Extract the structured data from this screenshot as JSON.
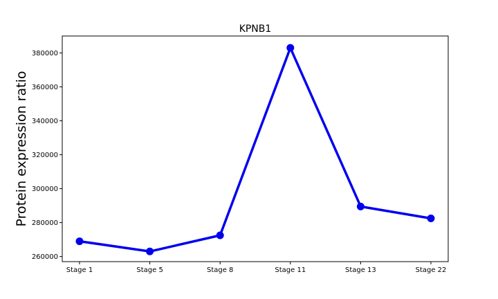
{
  "chart_data": {
    "type": "line",
    "title": "KPNB1",
    "xlabel": "",
    "ylabel": "Protein expression ratio",
    "categories": [
      "Stage 1",
      "Stage 5",
      "Stage 8",
      "Stage 11",
      "Stage 13",
      "Stage 22"
    ],
    "series": [
      {
        "values": [
          269000,
          263000,
          272500,
          383000,
          289500,
          282500
        ]
      }
    ],
    "ylim": [
      257000,
      390000
    ],
    "yticks": [
      260000,
      280000,
      300000,
      320000,
      340000,
      360000,
      380000
    ],
    "ytick_labels": [
      "260000",
      "280000",
      "300000",
      "320000",
      "340000",
      "360000",
      "380000"
    ],
    "line_color": "#0000ee",
    "grid": false,
    "legend": "none"
  }
}
